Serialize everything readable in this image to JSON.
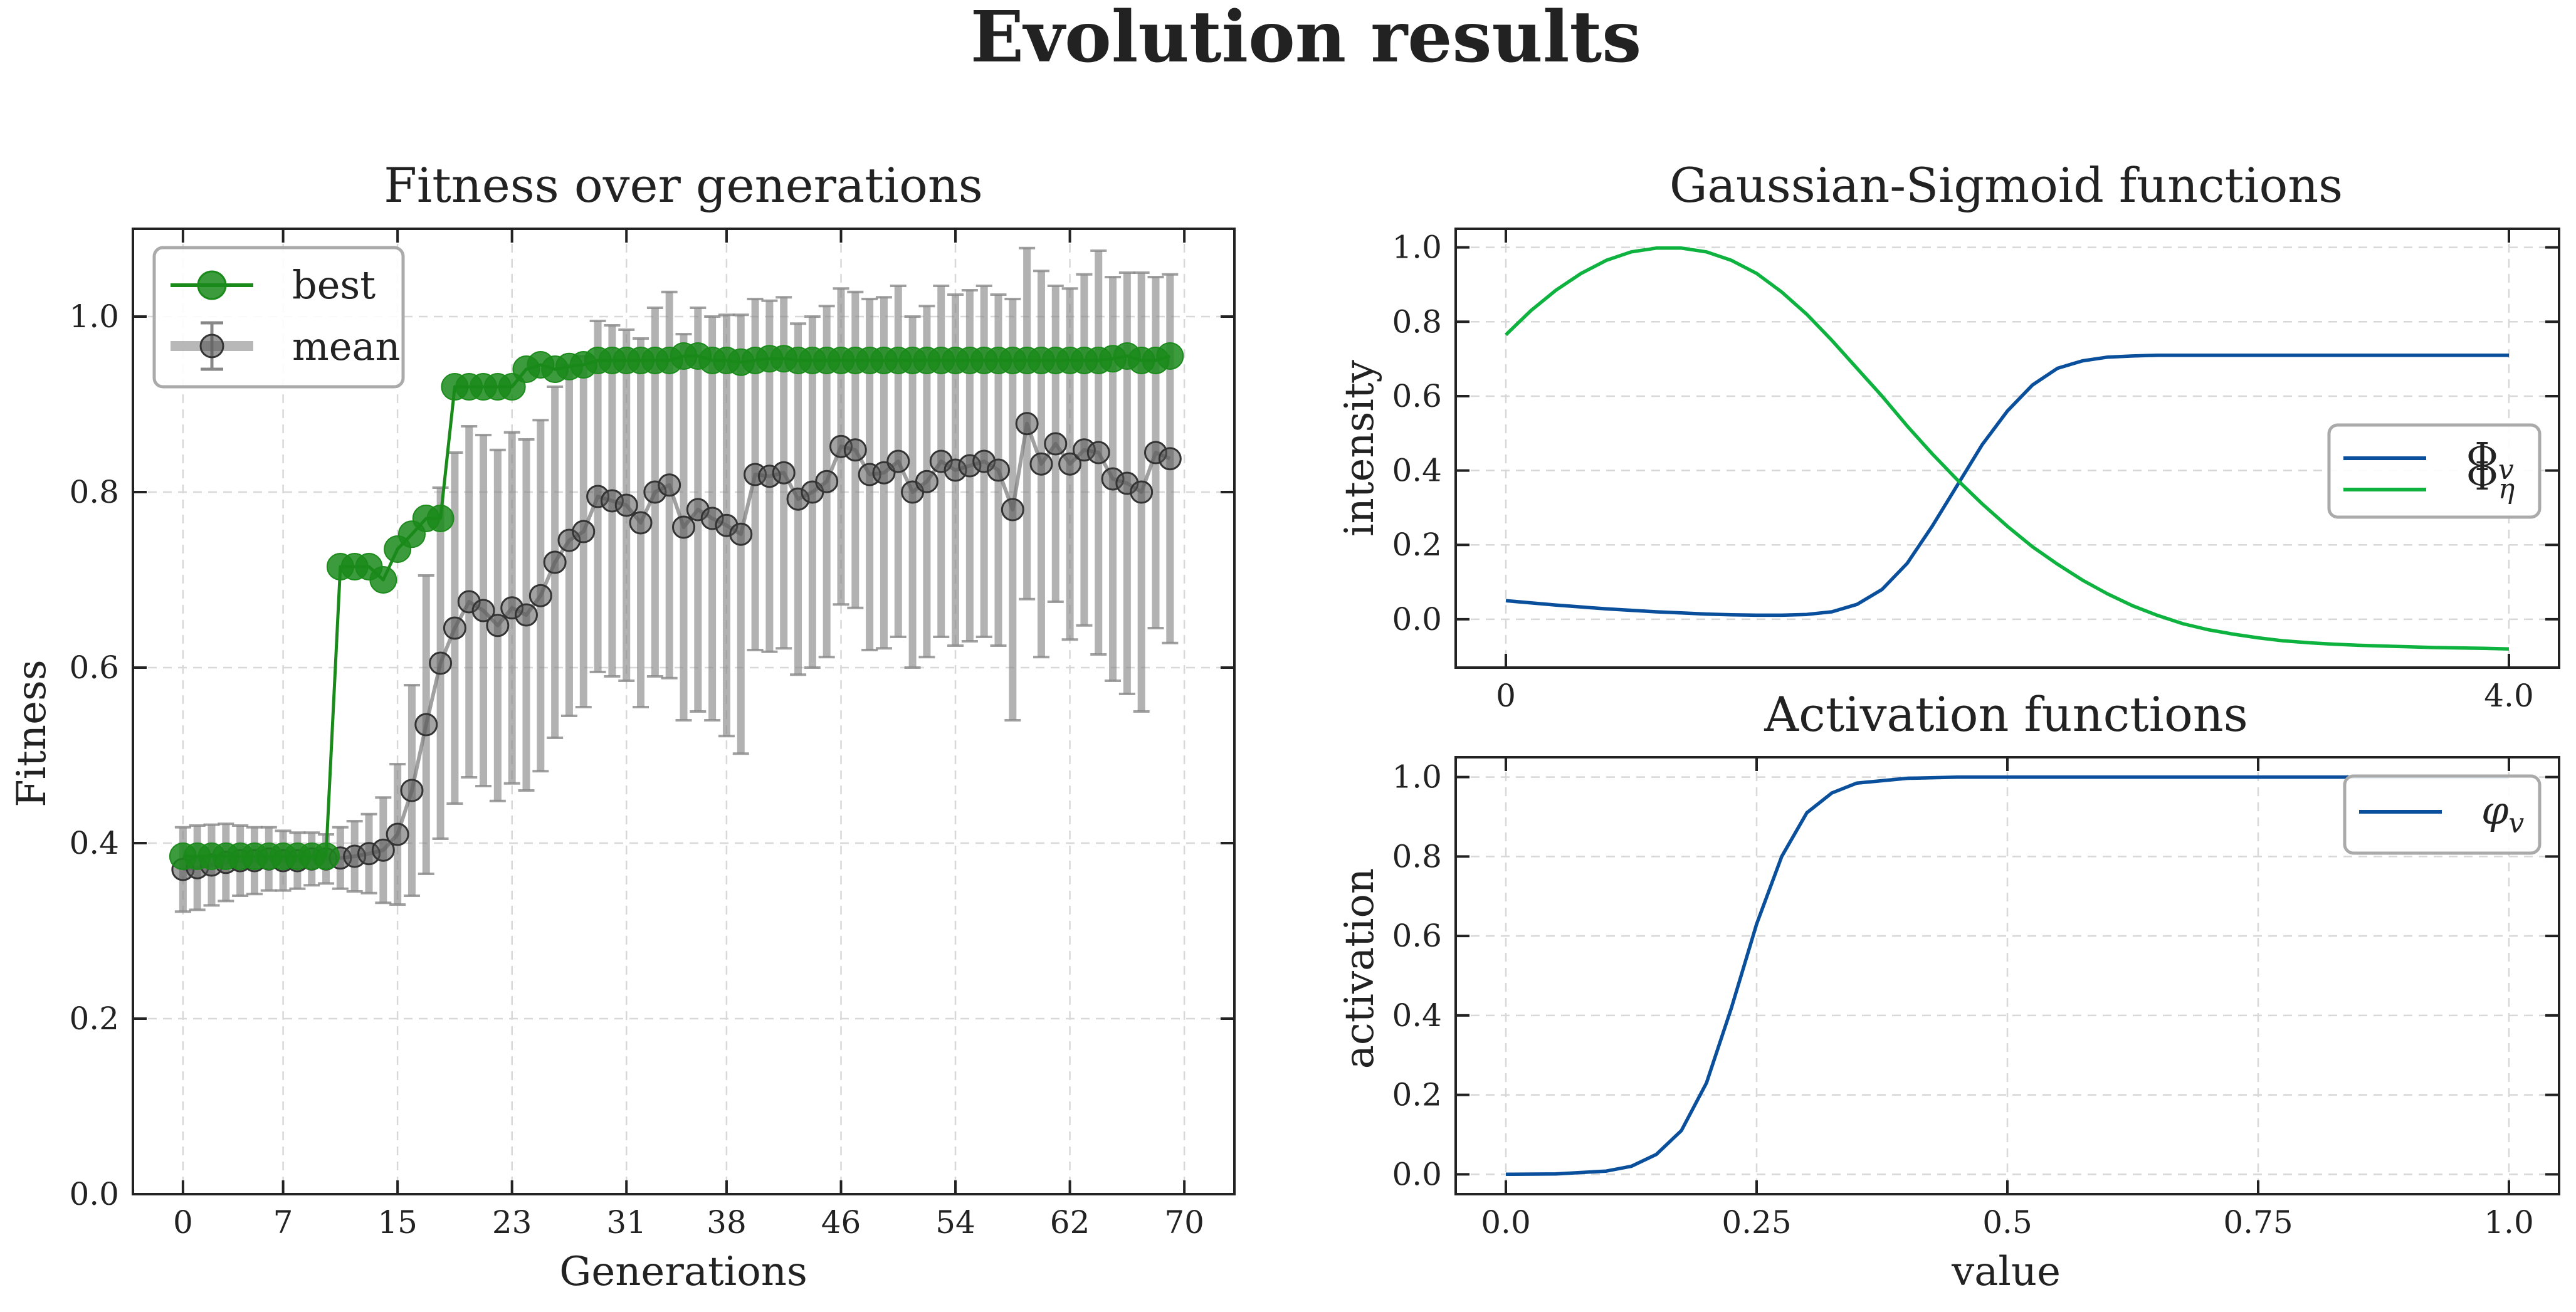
{
  "suptitle": "Evolution results",
  "panels": {
    "fitness": {
      "title": "Fitness over generations",
      "xlabel": "Generations",
      "ylabel": "Fitness",
      "xticks": [
        "0",
        "7",
        "15",
        "23",
        "31",
        "38",
        "46",
        "54",
        "62",
        "70"
      ],
      "yticks": [
        "0.0",
        "0.2",
        "0.4",
        "0.6",
        "0.8",
        "1.0"
      ],
      "legend": [
        "best",
        "mean"
      ]
    },
    "gaussian": {
      "title": "Gaussian-Sigmoid functions",
      "ylabel": "intensity",
      "xticks": [
        "0",
        "4.0"
      ],
      "yticks": [
        "0.0",
        "0.2",
        "0.4",
        "0.6",
        "0.8",
        "1.0"
      ],
      "legend": [
        "Φ_v",
        "Φ_η"
      ]
    },
    "activation": {
      "title": "Activation functions",
      "xlabel": "value",
      "ylabel": "activation",
      "xticks": [
        "0.0",
        "0.25",
        "0.5",
        "0.75",
        "1.0"
      ],
      "yticks": [
        "0.0",
        "0.2",
        "0.4",
        "0.6",
        "0.8",
        "1.0"
      ],
      "legend": [
        "φ_v"
      ]
    }
  },
  "chart_data": [
    {
      "type": "line",
      "title": "Fitness over generations",
      "xlabel": "Generations",
      "ylabel": "Fitness",
      "xlim": [
        -3.5,
        73.5
      ],
      "ylim": [
        0.0,
        1.1
      ],
      "grid": true,
      "legend_position": "top-left",
      "x": [
        0,
        1,
        2,
        3,
        4,
        5,
        6,
        7,
        8,
        9,
        10,
        11,
        12,
        13,
        14,
        15,
        16,
        17,
        18,
        19,
        20,
        21,
        22,
        23,
        24,
        25,
        26,
        27,
        28,
        29,
        30,
        31,
        32,
        33,
        34,
        35,
        36,
        37,
        38,
        39,
        40,
        41,
        42,
        43,
        44,
        45,
        46,
        47,
        48,
        49,
        50,
        51,
        52,
        53,
        54,
        55,
        56,
        57,
        58,
        59,
        60,
        61,
        62,
        63,
        64,
        65,
        66,
        67,
        68,
        69
      ],
      "series": [
        {
          "name": "best",
          "color": "#1a8a1a",
          "marker": "circle",
          "values": [
            0.385,
            0.385,
            0.385,
            0.385,
            0.385,
            0.385,
            0.385,
            0.385,
            0.385,
            0.385,
            0.385,
            0.715,
            0.715,
            0.715,
            0.7,
            0.735,
            0.752,
            0.77,
            0.77,
            0.92,
            0.92,
            0.92,
            0.92,
            0.92,
            0.94,
            0.945,
            0.94,
            0.943,
            0.945,
            0.95,
            0.95,
            0.95,
            0.95,
            0.95,
            0.95,
            0.955,
            0.955,
            0.95,
            0.95,
            0.948,
            0.95,
            0.952,
            0.952,
            0.95,
            0.95,
            0.95,
            0.95,
            0.95,
            0.95,
            0.95,
            0.95,
            0.95,
            0.95,
            0.95,
            0.95,
            0.95,
            0.95,
            0.95,
            0.95,
            0.95,
            0.95,
            0.95,
            0.95,
            0.95,
            0.95,
            0.952,
            0.955,
            0.95,
            0.95,
            0.955
          ]
        },
        {
          "name": "mean",
          "color": "#444444",
          "marker": "circle",
          "errorbars": true,
          "values": [
            0.37,
            0.372,
            0.375,
            0.378,
            0.38,
            0.38,
            0.382,
            0.38,
            0.38,
            0.382,
            0.382,
            0.383,
            0.385,
            0.388,
            0.392,
            0.41,
            0.46,
            0.535,
            0.605,
            0.645,
            0.675,
            0.665,
            0.648,
            0.668,
            0.66,
            0.682,
            0.72,
            0.745,
            0.755,
            0.795,
            0.79,
            0.785,
            0.765,
            0.8,
            0.808,
            0.76,
            0.78,
            0.77,
            0.762,
            0.752,
            0.82,
            0.818,
            0.822,
            0.792,
            0.8,
            0.812,
            0.852,
            0.848,
            0.82,
            0.822,
            0.835,
            0.8,
            0.812,
            0.835,
            0.825,
            0.83,
            0.835,
            0.825,
            0.78,
            0.878,
            0.832,
            0.855,
            0.832,
            0.848,
            0.845,
            0.815,
            0.81,
            0.8,
            0.845,
            0.838
          ],
          "errors": [
            0.048,
            0.048,
            0.046,
            0.044,
            0.04,
            0.038,
            0.036,
            0.034,
            0.032,
            0.03,
            0.028,
            0.035,
            0.04,
            0.045,
            0.06,
            0.08,
            0.12,
            0.17,
            0.2,
            0.2,
            0.2,
            0.2,
            0.2,
            0.2,
            0.2,
            0.2,
            0.2,
            0.2,
            0.2,
            0.2,
            0.2,
            0.2,
            0.21,
            0.21,
            0.22,
            0.22,
            0.23,
            0.23,
            0.24,
            0.25,
            0.2,
            0.2,
            0.2,
            0.2,
            0.2,
            0.2,
            0.18,
            0.18,
            0.2,
            0.2,
            0.2,
            0.2,
            0.2,
            0.2,
            0.2,
            0.2,
            0.2,
            0.2,
            0.24,
            0.2,
            0.22,
            0.18,
            0.2,
            0.2,
            0.23,
            0.23,
            0.24,
            0.25,
            0.2,
            0.21
          ]
        }
      ]
    },
    {
      "type": "line",
      "title": "Gaussian-Sigmoid functions",
      "ylabel": "intensity",
      "xlim": [
        -0.2,
        4.2
      ],
      "ylim": [
        -0.13,
        1.05
      ],
      "grid": true,
      "legend_position": "center-right",
      "x": [
        0.0,
        0.1,
        0.2,
        0.3,
        0.4,
        0.5,
        0.6,
        0.7,
        0.8,
        0.9,
        1.0,
        1.1,
        1.2,
        1.3,
        1.4,
        1.5,
        1.6,
        1.7,
        1.8,
        1.9,
        2.0,
        2.1,
        2.2,
        2.3,
        2.4,
        2.5,
        2.6,
        2.7,
        2.8,
        2.9,
        3.0,
        3.1,
        3.2,
        3.3,
        3.4,
        3.5,
        3.6,
        3.7,
        3.8,
        3.9,
        4.0
      ],
      "series": [
        {
          "name": "Φ_v",
          "color": "#0a4f9c",
          "values": [
            0.05,
            0.044,
            0.038,
            0.033,
            0.028,
            0.024,
            0.02,
            0.017,
            0.014,
            0.012,
            0.011,
            0.011,
            0.013,
            0.02,
            0.04,
            0.08,
            0.15,
            0.25,
            0.36,
            0.47,
            0.56,
            0.63,
            0.675,
            0.695,
            0.705,
            0.708,
            0.71,
            0.71,
            0.71,
            0.71,
            0.71,
            0.71,
            0.71,
            0.71,
            0.71,
            0.71,
            0.71,
            0.71,
            0.71,
            0.71,
            0.71
          ]
        },
        {
          "name": "Φ_η",
          "color": "#0db23f",
          "values": [
            0.765,
            0.83,
            0.885,
            0.93,
            0.965,
            0.988,
            0.998,
            0.998,
            0.988,
            0.965,
            0.93,
            0.88,
            0.82,
            0.75,
            0.675,
            0.6,
            0.52,
            0.445,
            0.375,
            0.31,
            0.25,
            0.195,
            0.148,
            0.105,
            0.068,
            0.036,
            0.01,
            -0.012,
            -0.028,
            -0.04,
            -0.05,
            -0.058,
            -0.063,
            -0.067,
            -0.07,
            -0.072,
            -0.074,
            -0.076,
            -0.077,
            -0.078,
            -0.08
          ]
        }
      ]
    },
    {
      "type": "line",
      "title": "Activation functions",
      "xlabel": "value",
      "ylabel": "activation",
      "xlim": [
        -0.05,
        1.05
      ],
      "ylim": [
        -0.05,
        1.05
      ],
      "grid": true,
      "legend_position": "top-right",
      "x": [
        0.0,
        0.05,
        0.1,
        0.125,
        0.15,
        0.175,
        0.2,
        0.225,
        0.25,
        0.275,
        0.3,
        0.325,
        0.35,
        0.4,
        0.45,
        0.5,
        0.6,
        0.7,
        0.8,
        0.9,
        1.0
      ],
      "series": [
        {
          "name": "φ_v",
          "color": "#0a4f9c",
          "values": [
            0.0,
            0.001,
            0.008,
            0.02,
            0.05,
            0.11,
            0.23,
            0.42,
            0.63,
            0.8,
            0.91,
            0.96,
            0.985,
            0.997,
            1.0,
            1.0,
            1.0,
            1.0,
            1.0,
            1.0,
            1.0
          ]
        }
      ]
    }
  ]
}
